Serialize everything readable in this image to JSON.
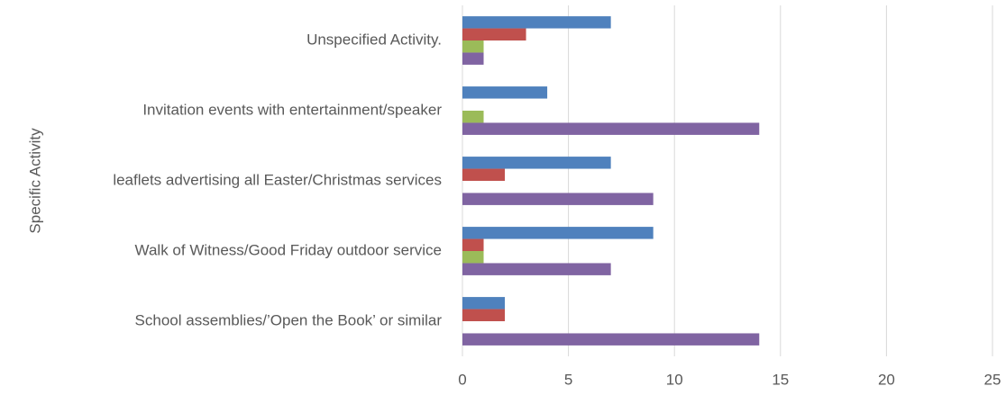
{
  "chart_data": {
    "type": "bar",
    "orientation": "horizontal",
    "y_label": "Specific Activity",
    "categories": [
      "Unspecified Activity.",
      "Invitation events with entertainment/speaker",
      "leaflets advertising all Easter/Christmas services",
      "Walk of Witness/Good Friday outdoor service",
      "School assemblies/’Open the Book’ or similar"
    ],
    "series": [
      {
        "color": "#4f81bd",
        "values": [
          7,
          4,
          7,
          9,
          2
        ]
      },
      {
        "color": "#c0504d",
        "values": [
          3,
          0,
          2,
          1,
          2
        ]
      },
      {
        "color": "#9bbb59",
        "values": [
          1,
          1,
          0,
          1,
          0
        ]
      },
      {
        "color": "#8064a2",
        "values": [
          1,
          14,
          9,
          7,
          14
        ]
      }
    ],
    "xlim": [
      0,
      25
    ],
    "xticks": [
      0,
      5,
      10,
      15,
      20,
      25
    ],
    "grid": true
  }
}
